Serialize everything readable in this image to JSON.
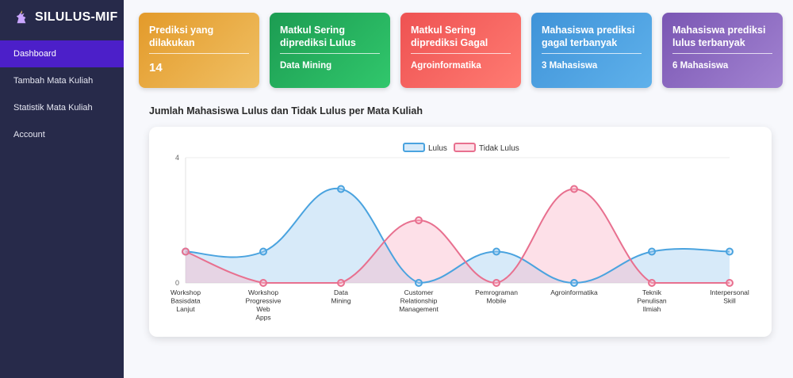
{
  "app": {
    "title": "SILULUS-MIF",
    "logo_icon": "unicorn-icon"
  },
  "sidebar": {
    "items": [
      {
        "label": "Dashboard",
        "active": true
      },
      {
        "label": "Tambah Mata Kuliah",
        "active": false
      },
      {
        "label": "Statistik Mata Kuliah",
        "active": false
      },
      {
        "label": "Account",
        "active": false
      }
    ]
  },
  "cards": [
    {
      "title": "Prediksi yang dilakukan",
      "value": "14",
      "color": "#e39a2a"
    },
    {
      "title": "Matkul Sering diprediksi Lulus",
      "value": "Data Mining",
      "color": "#1c9c52"
    },
    {
      "title": "Matkul Sering diprediksi Gagal",
      "value": "Agroinformatika",
      "color": "#ee5252"
    },
    {
      "title": "Mahasiswa prediksi gagal terbanyak",
      "value": "3 Mahasiswa",
      "color": "#3f93d8"
    },
    {
      "title": "Mahasiswa prediksi lulus terbanyak",
      "value": "6 Mahasiswa",
      "color": "#7a56b3"
    }
  ],
  "section": {
    "title": "Jumlah Mahasiswa Lulus dan Tidak Lulus per Mata Kuliah"
  },
  "chart_data": {
    "type": "line",
    "categories": [
      [
        "Workshop",
        "Basisdata",
        "Lanjut"
      ],
      [
        "Workshop",
        "Progressive",
        "Web",
        "Apps"
      ],
      [
        "Data",
        "Mining"
      ],
      [
        "Customer",
        "Relationship",
        "Management"
      ],
      [
        "Pemrograman",
        "Mobile"
      ],
      [
        "Agroinformatika"
      ],
      [
        "Teknik",
        "Penulisan",
        "Ilmiah"
      ],
      [
        "Interpersonal",
        "Skill"
      ]
    ],
    "series": [
      {
        "name": "Lulus",
        "values": [
          1,
          1,
          3,
          0,
          1,
          0,
          1,
          1
        ],
        "color": "#4aa3df",
        "fill": "rgba(160,205,240,0.42)"
      },
      {
        "name": "Tidak Lulus",
        "values": [
          1,
          0,
          0,
          2,
          0,
          3,
          0,
          0
        ],
        "color": "#e8708f",
        "fill": "rgba(250,180,200,0.42)"
      }
    ],
    "ylim": [
      0,
      4
    ],
    "yticks": [
      "0",
      "4"
    ],
    "legend": "top-center",
    "grid": true,
    "curve": "smooth"
  }
}
